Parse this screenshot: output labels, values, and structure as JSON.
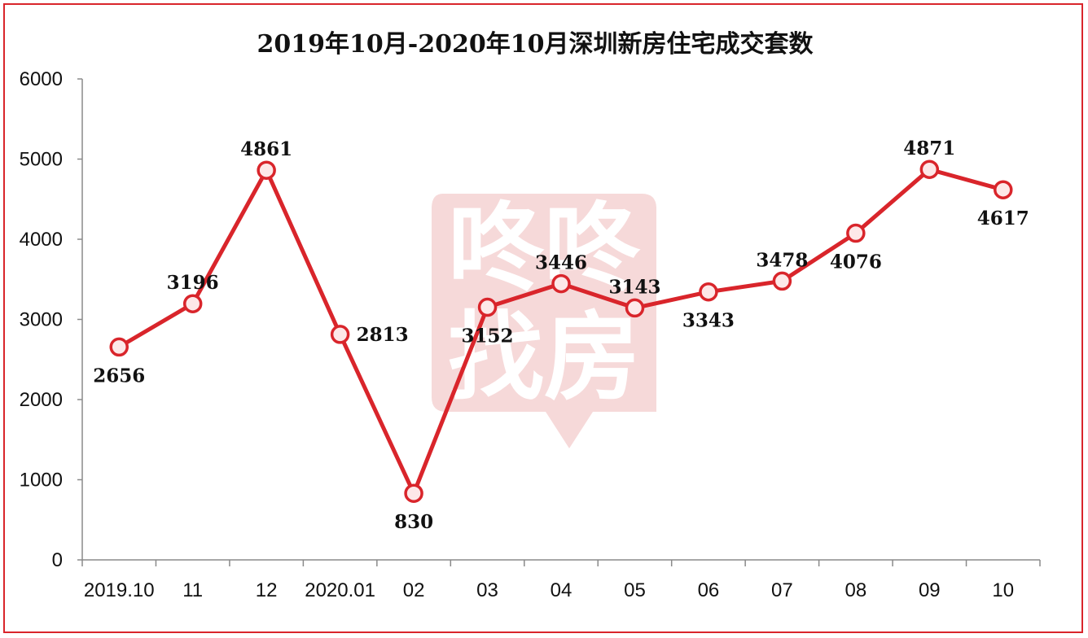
{
  "chart_data": {
    "type": "line",
    "title": "2019年10月-2020年10月深圳新房住宅成交套数",
    "categories": [
      "2019.10",
      "11",
      "12",
      "2020.01",
      "02",
      "03",
      "04",
      "05",
      "06",
      "07",
      "08",
      "09",
      "10"
    ],
    "series": [
      {
        "values": [
          2656,
          3196,
          4861,
          2813,
          830,
          3152,
          3446,
          3143,
          3343,
          3478,
          4076,
          4871,
          4617
        ]
      }
    ],
    "data_labels": [
      "2656",
      "3196",
      "4861",
      "2813",
      "830",
      "3152",
      "3446",
      "3143",
      "3343",
      "3478",
      "4076",
      "4871",
      "4617"
    ],
    "label_positions": [
      "below",
      "above",
      "above",
      "right",
      "below",
      "below",
      "above",
      "above",
      "below",
      "above",
      "below",
      "above",
      "below"
    ],
    "ylim": [
      0,
      6000
    ],
    "y_ticks": [
      "0",
      "1000",
      "2000",
      "3000",
      "4000",
      "5000",
      "6000"
    ],
    "xlabel": "",
    "ylabel": "",
    "grid": false,
    "legend": "none",
    "colors": {
      "line": "#d9252b",
      "marker_fill": "#fde8e8",
      "frame": "#d9252b",
      "watermark": "#f6d9d9"
    },
    "watermark": {
      "line1": "咚咚",
      "line2": "找房"
    }
  }
}
